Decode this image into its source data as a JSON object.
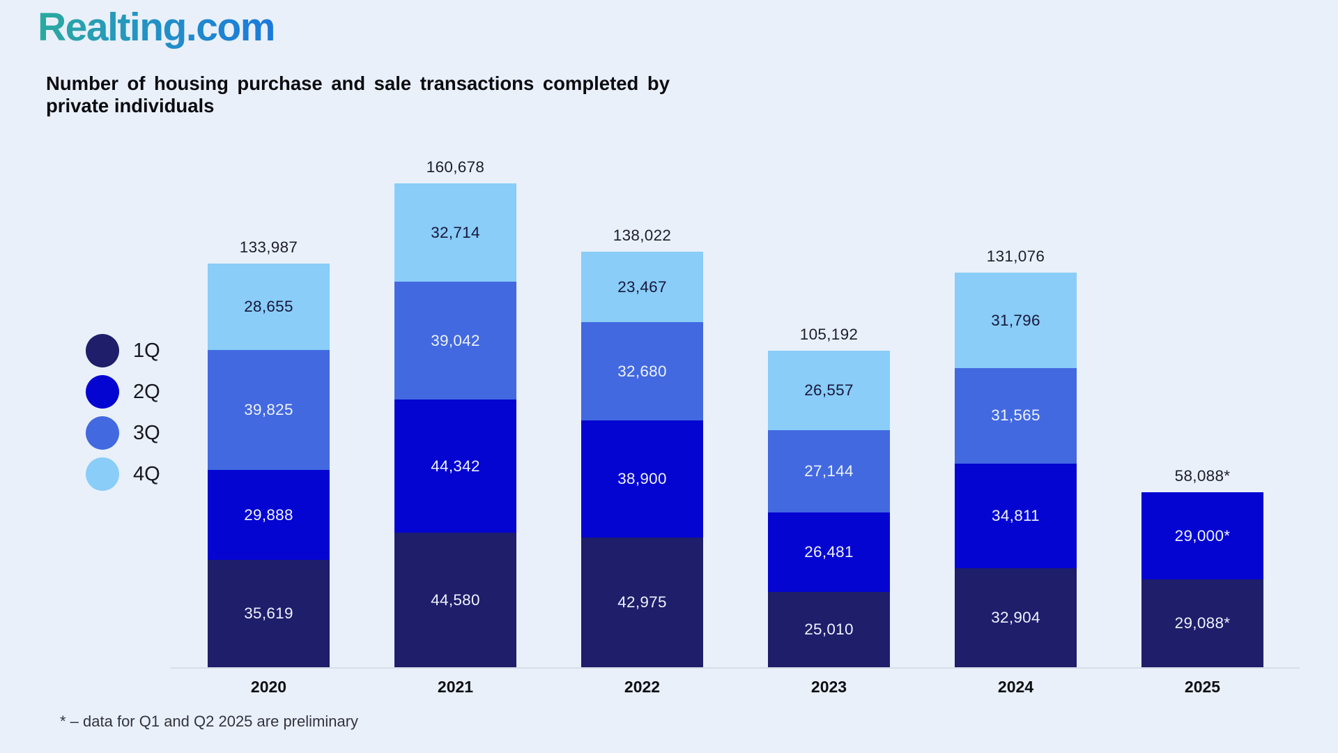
{
  "page": {
    "background": "#E9F0FA"
  },
  "header": {
    "logo_text": "Realting.com",
    "logo_gradient_start": "#2BAA9E",
    "logo_gradient_end": "#1B79DA",
    "title_line1": "Number of housing purchase and sale transactions completed by",
    "title_line2": "private individuals"
  },
  "legend": {
    "items": [
      {
        "label": "1Q",
        "color": "#1E1E6B"
      },
      {
        "label": "2Q",
        "color": "#0505D2"
      },
      {
        "label": "3Q",
        "color": "#4269E0"
      },
      {
        "label": "4Q",
        "color": "#89CDF8"
      }
    ]
  },
  "footnote": "* – data for Q1 and Q2 2025 are preliminary",
  "chart_data": {
    "type": "bar",
    "stacked": true,
    "title": "Number of housing purchase and sale transactions completed by private individuals",
    "categories": [
      "2020",
      "2021",
      "2022",
      "2023",
      "2024",
      "2025"
    ],
    "totals": [
      133987,
      160678,
      138022,
      105192,
      131076,
      58088
    ],
    "totals_display": [
      "133,987",
      "160,678",
      "138,022",
      "105,192",
      "131,076",
      "58,088*"
    ],
    "series": [
      {
        "name": "1Q",
        "color": "#1E1E6B",
        "label_color": "#EEF2FC",
        "values": [
          35619,
          44580,
          42975,
          25010,
          32904,
          29088
        ],
        "display": [
          "35,619",
          "44,580",
          "42,975",
          "25,010",
          "32,904",
          "29,088*"
        ]
      },
      {
        "name": "2Q",
        "color": "#0505D2",
        "label_color": "#EEF2FC",
        "values": [
          29888,
          44342,
          38900,
          26481,
          34811,
          29000
        ],
        "display": [
          "29,888",
          "44,342",
          "38,900",
          "26,481",
          "34,811",
          "29,000*"
        ]
      },
      {
        "name": "3Q",
        "color": "#4269E0",
        "label_color": "#EEF2FC",
        "values": [
          39825,
          39042,
          32680,
          27144,
          31565,
          null
        ],
        "display": [
          "39,825",
          "39,042",
          "32,680",
          "27,144",
          "31,565",
          null
        ]
      },
      {
        "name": "4Q",
        "color": "#89CDF8",
        "label_color": "#17173A",
        "values": [
          28655,
          32714,
          23467,
          26557,
          31796,
          null
        ],
        "display": [
          "28,655",
          "32,714",
          "23,467",
          "26,557",
          "31,796",
          null
        ]
      }
    ],
    "grid": false,
    "legend_position": "middle-left",
    "xlabel": "",
    "ylabel": "",
    "annotations": [
      "* – data for Q1 and Q2 2025 are preliminary"
    ]
  }
}
